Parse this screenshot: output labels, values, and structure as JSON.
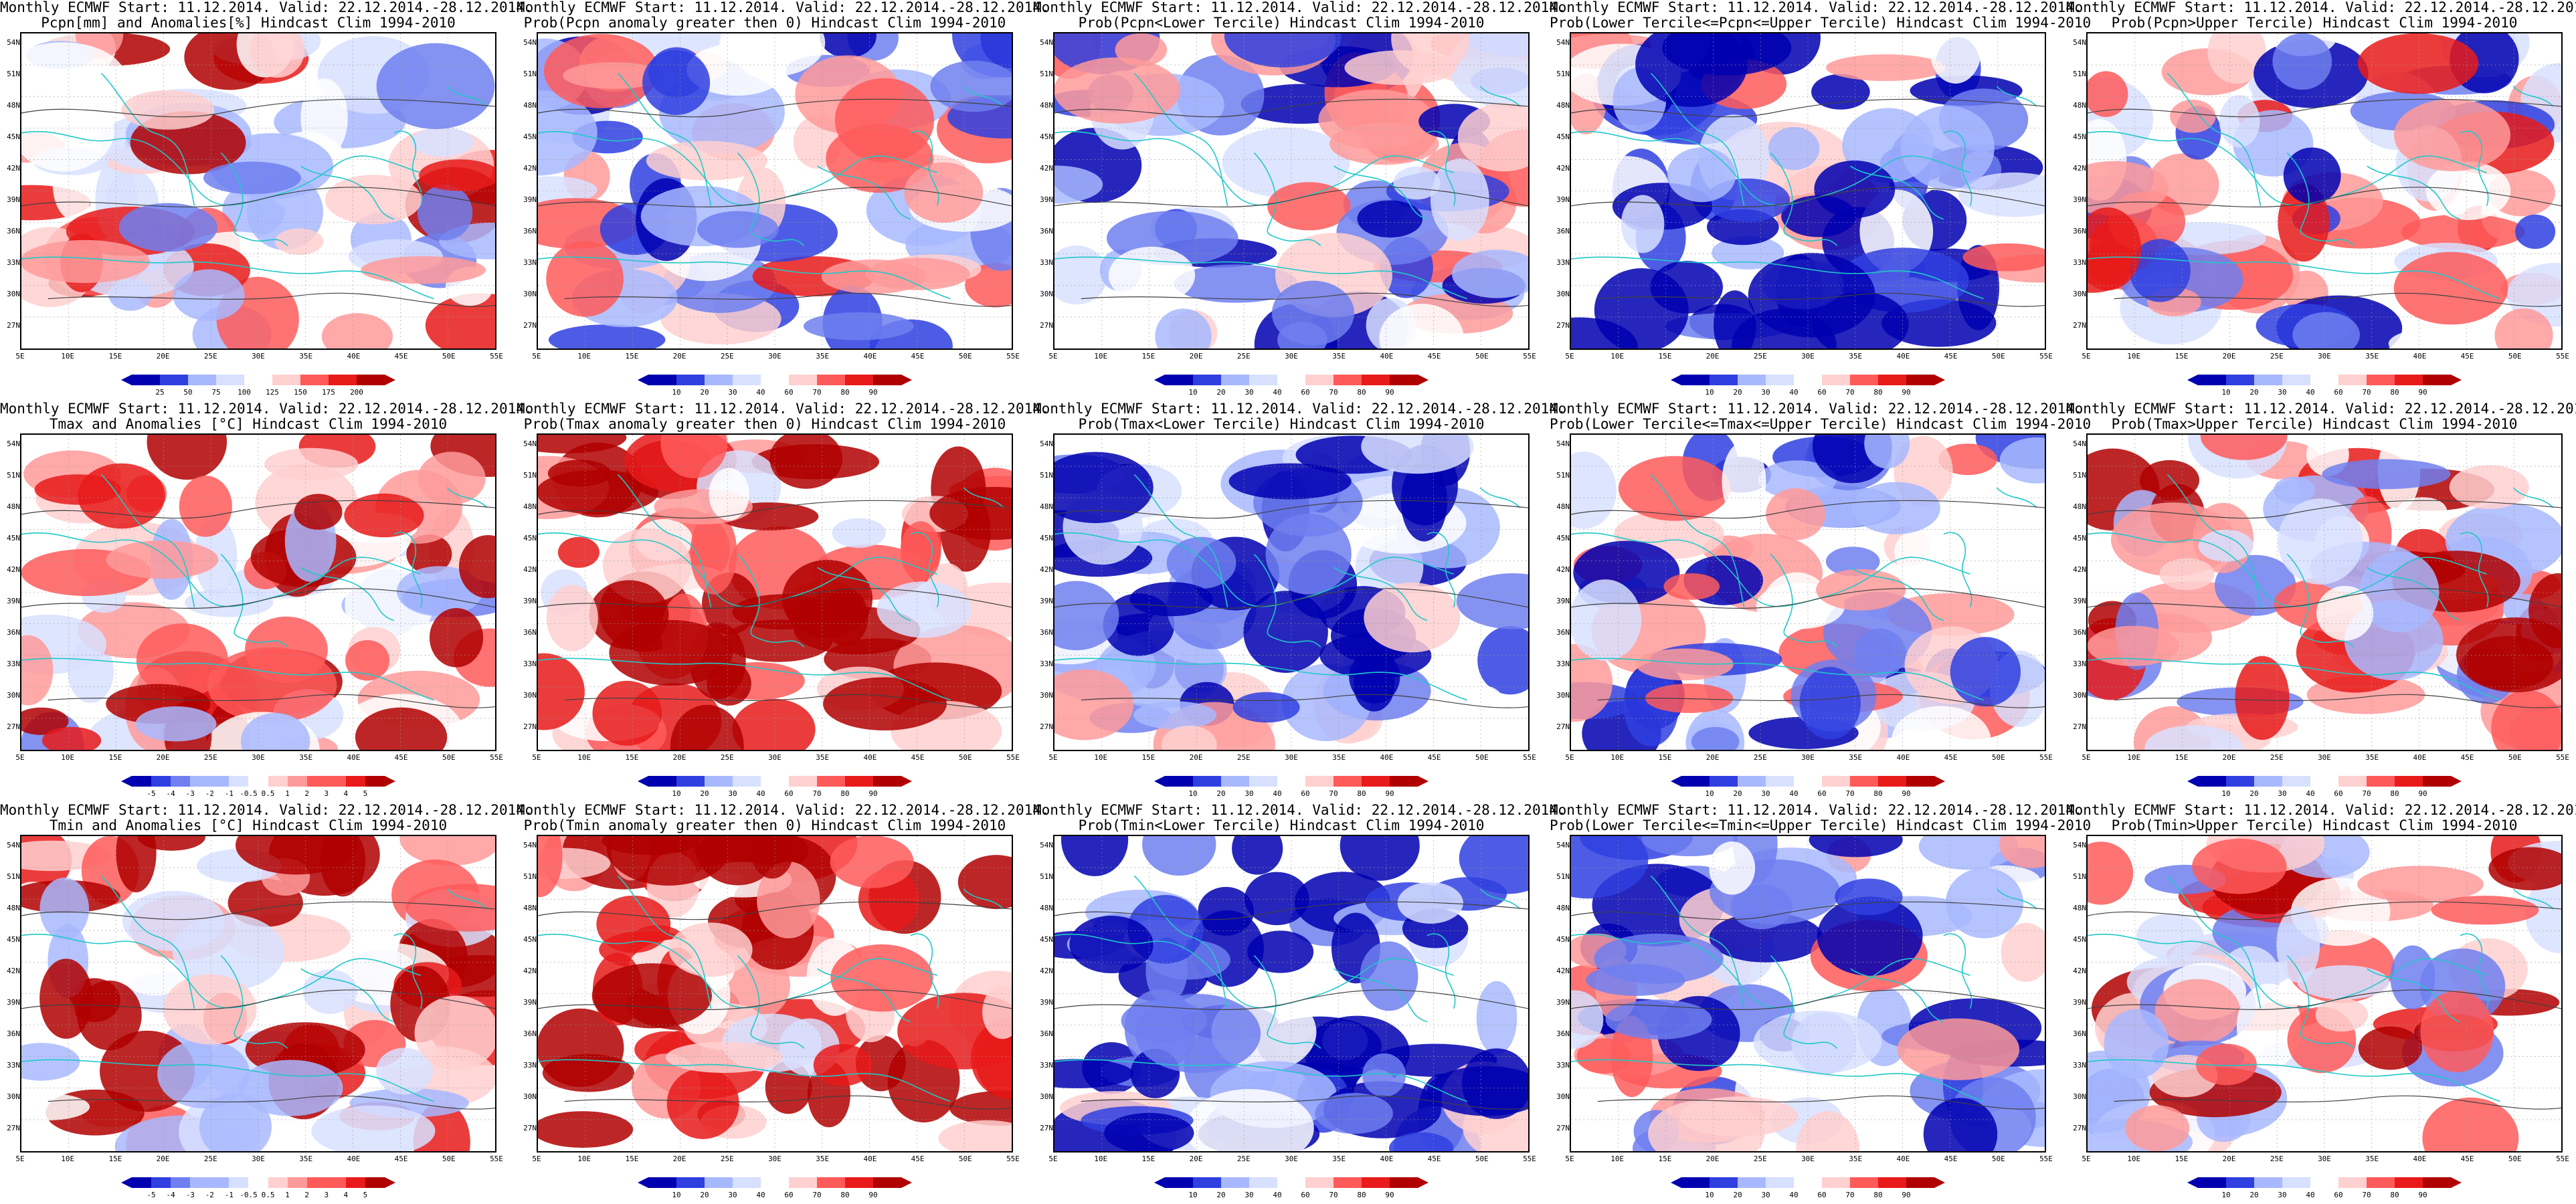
{
  "figure": {
    "model_prefix": "Monthly ECMWF Start: 11.12.2014. Valid: 22.12.2014.-28.12.2014.",
    "lat_labels": [
      "54N",
      "51N",
      "48N",
      "45N",
      "42N",
      "39N",
      "36N",
      "33N",
      "30N",
      "27N"
    ],
    "lon_labels": [
      "5E",
      "10E",
      "15E",
      "20E",
      "25E",
      "30E",
      "35E",
      "40E",
      "45E",
      "50E",
      "55E"
    ],
    "colors": {
      "dark_blue": "#0000b0",
      "blue": "#2f3fe0",
      "mid_blue": "#6f7ff0",
      "light_blue": "#a8b8ff",
      "pale_blue": "#d8e0ff",
      "white": "#ffffff",
      "pale_red": "#ffd0d0",
      "light_red": "#ff9a9a",
      "mid_red": "#ff5a5a",
      "red": "#e81a1a",
      "dark_red": "#b00000",
      "coast": "#20c8c8",
      "contour": "#404040"
    }
  },
  "panels": [
    {
      "id": "pcpn-anom",
      "title2": "Pcpn[mm] and Anomalies[%] Hindcast Clim 1994-2010",
      "ticks": [
        "25",
        "50",
        "75",
        "100",
        "125",
        "150",
        "175",
        "200"
      ],
      "bias": 0.2
    },
    {
      "id": "pcpn-prob-pos",
      "title2": "Prob(Pcpn anomaly greater then 0) Hindcast Clim 1994-2010",
      "ticks": [
        "10",
        "20",
        "30",
        "40",
        "60",
        "70",
        "80",
        "90"
      ],
      "bias": -0.1
    },
    {
      "id": "pcpn-prob-lower",
      "title2": "Prob(Pcpn<Lower Tercile) Hindcast Clim 1994-2010",
      "ticks": [
        "10",
        "20",
        "30",
        "40",
        "60",
        "70",
        "80",
        "90"
      ],
      "bias": -0.2
    },
    {
      "id": "pcpn-prob-middle",
      "title2": "Prob(Lower Tercile<=Pcpn<=Upper Tercile) Hindcast Clim 1994-2010",
      "ticks": [
        "10",
        "20",
        "30",
        "40",
        "60",
        "70",
        "80",
        "90"
      ],
      "bias": -0.35
    },
    {
      "id": "pcpn-prob-upper",
      "title2": "Prob(Pcpn>Upper Tercile) Hindcast Clim 1994-2010",
      "ticks": [
        "10",
        "20",
        "30",
        "40",
        "60",
        "70",
        "80",
        "90"
      ],
      "bias": -0.05
    },
    {
      "id": "tmax-anom",
      "title2": "Tmax and Anomalies [°C] Hindcast Clim 1994-2010",
      "ticks": [
        "-5",
        "-4",
        "-3",
        "-2",
        "-1",
        "-0.5",
        "0.5",
        "1",
        "2",
        "3",
        "4",
        "5"
      ],
      "bias": 0.35
    },
    {
      "id": "tmax-prob-pos",
      "title2": "Prob(Tmax anomaly greater then 0) Hindcast Clim 1994-2010",
      "ticks": [
        "10",
        "20",
        "30",
        "40",
        "60",
        "70",
        "80",
        "90"
      ],
      "bias": 0.6
    },
    {
      "id": "tmax-prob-lower",
      "title2": "Prob(Tmax<Lower Tercile) Hindcast Clim 1994-2010",
      "ticks": [
        "10",
        "20",
        "30",
        "40",
        "60",
        "70",
        "80",
        "90"
      ],
      "bias": -0.7
    },
    {
      "id": "tmax-prob-middle",
      "title2": "Prob(Lower Tercile<=Tmax<=Upper Tercile) Hindcast Clim 1994-2010",
      "ticks": [
        "10",
        "20",
        "30",
        "40",
        "60",
        "70",
        "80",
        "90"
      ],
      "bias": -0.2
    },
    {
      "id": "tmax-prob-upper",
      "title2": "Prob(Tmax>Upper Tercile) Hindcast Clim 1994-2010",
      "ticks": [
        "10",
        "20",
        "30",
        "40",
        "60",
        "70",
        "80",
        "90"
      ],
      "bias": 0.25
    },
    {
      "id": "tmin-anom",
      "title2": "Tmin and Anomalies [°C] Hindcast Clim 1994-2010",
      "ticks": [
        "-5",
        "-4",
        "-3",
        "-2",
        "-1",
        "-0.5",
        "0.5",
        "1",
        "2",
        "3",
        "4",
        "5"
      ],
      "bias": 0.4
    },
    {
      "id": "tmin-prob-pos",
      "title2": "Prob(Tmin anomaly greater then 0) Hindcast Clim 1994-2010",
      "ticks": [
        "10",
        "20",
        "30",
        "40",
        "60",
        "70",
        "80",
        "90"
      ],
      "bias": 0.7
    },
    {
      "id": "tmin-prob-lower",
      "title2": "Prob(Tmin<Lower Tercile) Hindcast Clim 1994-2010",
      "ticks": [
        "10",
        "20",
        "30",
        "40",
        "60",
        "70",
        "80",
        "90"
      ],
      "bias": -0.75
    },
    {
      "id": "tmin-prob-middle",
      "title2": "Prob(Lower Tercile<=Tmin<=Upper Tercile) Hindcast Clim 1994-2010",
      "ticks": [
        "10",
        "20",
        "30",
        "40",
        "60",
        "70",
        "80",
        "90"
      ],
      "bias": -0.25
    },
    {
      "id": "tmin-prob-upper",
      "title2": "Prob(Tmin>Upper Tercile) Hindcast Clim 1994-2010",
      "ticks": [
        "10",
        "20",
        "30",
        "40",
        "60",
        "70",
        "80",
        "90"
      ],
      "bias": 0.2
    }
  ]
}
